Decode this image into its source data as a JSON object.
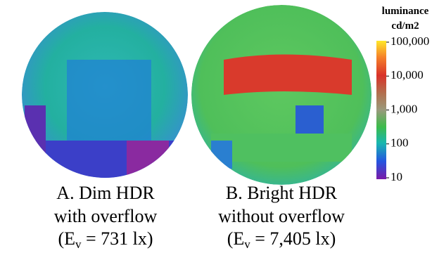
{
  "panels": [
    {
      "caption": [
        "A. Dim HDR",
        "with overflow"
      ],
      "illuminance": {
        "prefix": "(E",
        "subscript": "v",
        "suffix": " = 731 lx)"
      }
    },
    {
      "caption": [
        "B. Bright HDR",
        "without overflow"
      ],
      "illuminance": {
        "prefix": "(E",
        "subscript": "v",
        "suffix": " = 7,405 lx)"
      }
    }
  ],
  "colorbar": {
    "title": [
      "luminance",
      "cd/m2"
    ],
    "scale": "log",
    "lim": [
      10,
      100000
    ],
    "ticks": [
      {
        "value": 100000,
        "label": "100,000"
      },
      {
        "value": 10000,
        "label": "10,000"
      },
      {
        "value": 1000,
        "label": "1,000"
      },
      100,
      10
    ]
  }
}
